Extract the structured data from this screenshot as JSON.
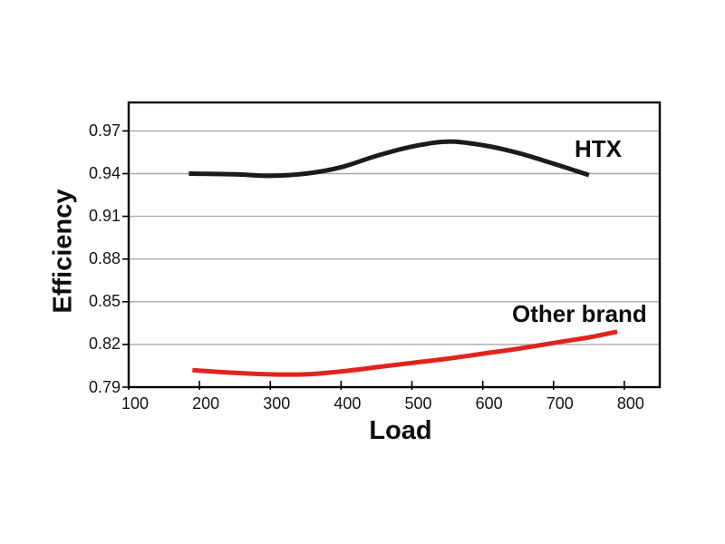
{
  "chart_data": {
    "type": "line",
    "title": "",
    "xlabel": "Load",
    "ylabel": "Efficiency",
    "x_ticks": [
      "100",
      "200",
      "300",
      "400",
      "500",
      "600",
      "700",
      "800"
    ],
    "y_ticks": [
      "0.79",
      "0.82",
      "0.85",
      "0.88",
      "0.91",
      "0.94",
      "0.97"
    ],
    "xlim": [
      100,
      850
    ],
    "ylim": [
      0.79,
      0.99
    ],
    "grid": "horizontal-major-only",
    "grid_color": "#a9a9a9",
    "axis_color": "#000000",
    "background_color": "#ffffff",
    "legend_position": "inline-labels-near-lines",
    "series": [
      {
        "name": "HTX",
        "color": "#1b1b1b",
        "x": [
          185,
          250,
          300,
          350,
          400,
          450,
          500,
          550,
          600,
          650,
          700,
          750
        ],
        "y": [
          0.94,
          0.9395,
          0.9385,
          0.94,
          0.9445,
          0.9525,
          0.959,
          0.9625,
          0.96,
          0.9545,
          0.947,
          0.939
        ]
      },
      {
        "name": "Other brand",
        "color": "#e2231e",
        "x": [
          190,
          250,
          300,
          350,
          400,
          450,
          500,
          550,
          600,
          650,
          700,
          750,
          790
        ],
        "y": [
          0.802,
          0.8,
          0.799,
          0.799,
          0.801,
          0.804,
          0.807,
          0.81,
          0.8135,
          0.817,
          0.821,
          0.825,
          0.829
        ]
      }
    ]
  }
}
